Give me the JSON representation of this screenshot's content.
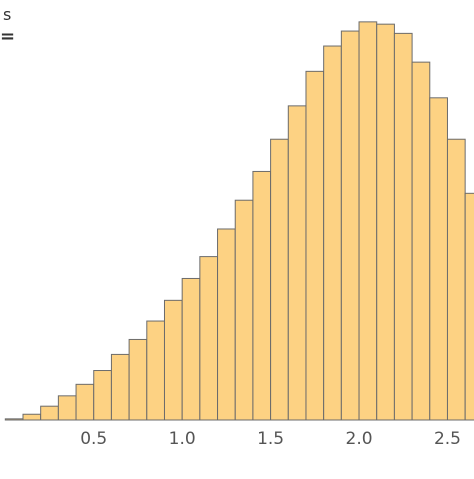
{
  "chart_data": {
    "type": "bar",
    "bin_width": 0.1,
    "x": [
      0.05,
      0.15,
      0.25,
      0.35,
      0.45,
      0.55,
      0.65,
      0.75,
      0.85,
      0.95,
      1.05,
      1.15,
      1.25,
      1.35,
      1.45,
      1.55,
      1.65,
      1.75,
      1.85,
      1.95,
      2.05,
      2.15,
      2.25,
      2.35,
      2.45,
      2.55,
      2.65
    ],
    "values": [
      0.01,
      0.05,
      0.12,
      0.21,
      0.31,
      0.43,
      0.57,
      0.7,
      0.86,
      1.04,
      1.23,
      1.42,
      1.66,
      1.91,
      2.16,
      2.44,
      2.73,
      3.03,
      3.25,
      3.38,
      3.46,
      3.44,
      3.36,
      3.11,
      2.8,
      2.44,
      1.97
    ],
    "xlim": [
      -0.03,
      2.65
    ],
    "ylim": [
      0,
      3.65
    ],
    "x_ticks": [
      "0.5",
      "1.0",
      "1.5",
      "2.0",
      "2.5"
    ],
    "grid": false,
    "bar_color": "#fdd283",
    "edge_color": "#6b6b6b",
    "legend_fragment": [
      "s",
      "="
    ]
  }
}
